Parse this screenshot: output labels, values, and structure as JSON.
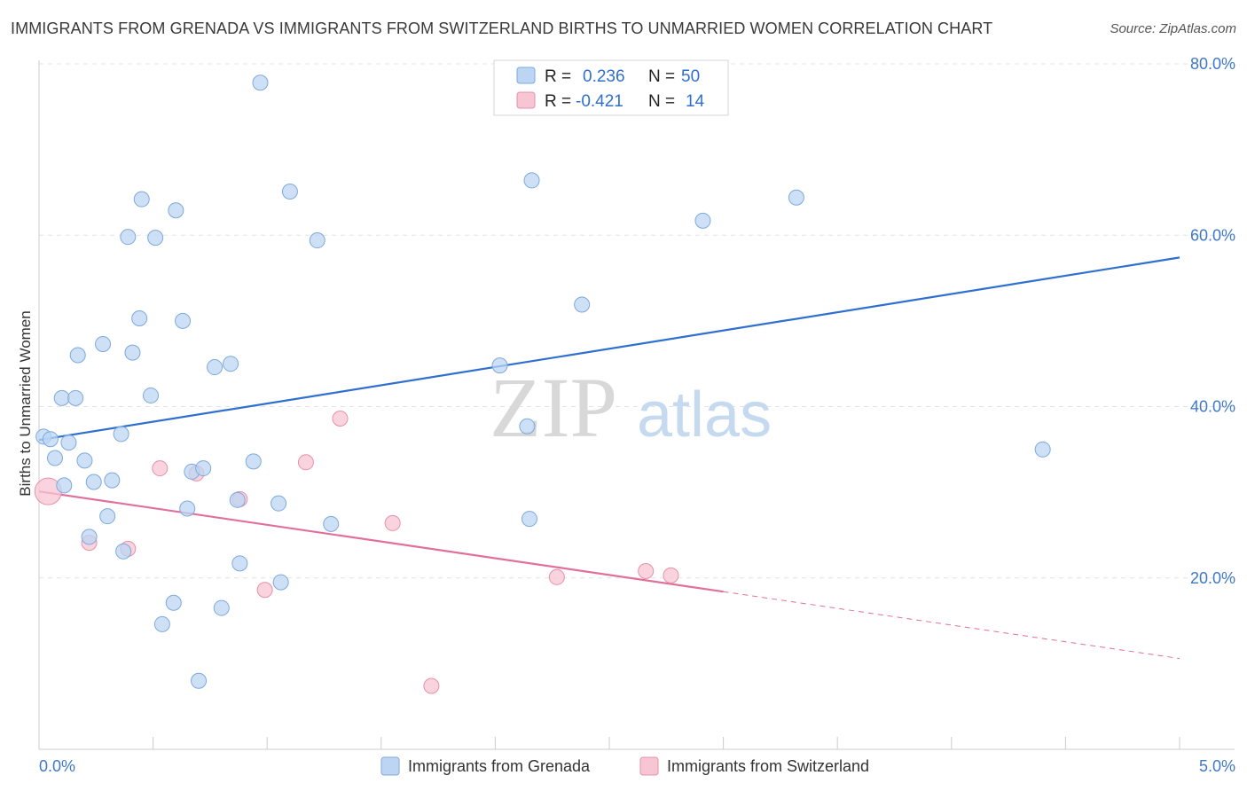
{
  "title": "IMMIGRANTS FROM GRENADA VS IMMIGRANTS FROM SWITZERLAND BIRTHS TO UNMARRIED WOMEN CORRELATION CHART",
  "source": "Source: ZipAtlas.com",
  "watermark": {
    "zip": "ZIP",
    "atlas": "atlas"
  },
  "colors": {
    "grenada_fill": "#bcd5f3",
    "grenada_stroke": "#7ea9dc",
    "grenada_line": "#2f6fd0",
    "switzerland_fill": "#f7c5d3",
    "switzerland_stroke": "#e890aa",
    "switzerland_line": "#e0709a",
    "tick_label": "#3f78c8",
    "grid": "#e3e3e3"
  },
  "legend": {
    "r_label": "R =",
    "n_label": "N =",
    "rows": [
      {
        "r": "0.236",
        "n": "50"
      },
      {
        "r": "-0.421",
        "n": "14"
      }
    ]
  },
  "chart_data": {
    "type": "scatter",
    "title": "IMMIGRANTS FROM GRENADA VS IMMIGRANTS FROM SWITZERLAND BIRTHS TO UNMARRIED WOMEN CORRELATION CHART",
    "xlabel": "",
    "ylabel": "Births to Unmarried Women",
    "xlim": [
      0,
      5
    ],
    "ylim": [
      0,
      80
    ],
    "x_tick_labels": [
      {
        "value": 0,
        "label": "0.0%"
      },
      {
        "value": 5,
        "label": "5.0%"
      }
    ],
    "y_tick_labels": [
      {
        "value": 20,
        "label": "20.0%"
      },
      {
        "value": 40,
        "label": "40.0%"
      },
      {
        "value": 60,
        "label": "60.0%"
      },
      {
        "value": 80,
        "label": "80.0%"
      }
    ],
    "grid": true,
    "legend_placement": "top-center",
    "series": [
      {
        "name": "Immigrants from Grenada",
        "points": [
          [
            0.02,
            36.5
          ],
          [
            0.05,
            36.2
          ],
          [
            0.07,
            34
          ],
          [
            0.1,
            41
          ],
          [
            0.11,
            30.8
          ],
          [
            0.13,
            35.8
          ],
          [
            0.16,
            41
          ],
          [
            0.17,
            46
          ],
          [
            0.2,
            33.7
          ],
          [
            0.22,
            24.8
          ],
          [
            0.24,
            31.2
          ],
          [
            0.28,
            47.3
          ],
          [
            0.3,
            27.2
          ],
          [
            0.32,
            31.4
          ],
          [
            0.36,
            36.8
          ],
          [
            0.37,
            23.1
          ],
          [
            0.39,
            59.8
          ],
          [
            0.41,
            46.3
          ],
          [
            0.44,
            50.3
          ],
          [
            0.45,
            64.2
          ],
          [
            0.49,
            41.3
          ],
          [
            0.51,
            59.7
          ],
          [
            0.54,
            14.6
          ],
          [
            0.59,
            17.1
          ],
          [
            0.6,
            62.9
          ],
          [
            0.63,
            50
          ],
          [
            0.65,
            28.1
          ],
          [
            0.67,
            32.4
          ],
          [
            0.7,
            8
          ],
          [
            0.72,
            32.8
          ],
          [
            0.77,
            44.6
          ],
          [
            0.8,
            16.5
          ],
          [
            0.84,
            45
          ],
          [
            0.87,
            29.1
          ],
          [
            0.88,
            21.7
          ],
          [
            0.94,
            33.6
          ],
          [
            0.97,
            77.8
          ],
          [
            1.05,
            28.7
          ],
          [
            1.06,
            19.5
          ],
          [
            1.1,
            65.1
          ],
          [
            1.22,
            59.4
          ],
          [
            1.28,
            26.3
          ],
          [
            2.02,
            44.8
          ],
          [
            2.14,
            37.7
          ],
          [
            2.15,
            26.9
          ],
          [
            2.16,
            66.4
          ],
          [
            2.38,
            51.9
          ],
          [
            2.91,
            61.7
          ],
          [
            3.32,
            64.4
          ],
          [
            4.4,
            35
          ]
        ],
        "trend": {
          "x": [
            0,
            5
          ],
          "y": [
            36.1,
            57.4
          ]
        },
        "r": 0.236,
        "n": 50
      },
      {
        "name": "Immigrants from Switzerland",
        "points": [
          [
            0.04,
            30.1
          ],
          [
            0.22,
            24.1
          ],
          [
            0.39,
            23.4
          ],
          [
            0.53,
            32.8
          ],
          [
            0.69,
            32.2
          ],
          [
            0.88,
            29.2
          ],
          [
            0.99,
            18.6
          ],
          [
            1.17,
            33.5
          ],
          [
            1.32,
            38.6
          ],
          [
            1.55,
            26.4
          ],
          [
            1.72,
            7.4
          ],
          [
            2.27,
            20.1
          ],
          [
            2.66,
            20.8
          ],
          [
            2.77,
            20.3
          ]
        ],
        "trend": {
          "x": [
            0,
            3.0
          ],
          "y": [
            30.1,
            18.4
          ]
        },
        "trend_dashed": {
          "x": [
            3.0,
            5
          ],
          "y": [
            18.4,
            10.6
          ]
        },
        "r": -0.421,
        "n": 14
      }
    ]
  }
}
